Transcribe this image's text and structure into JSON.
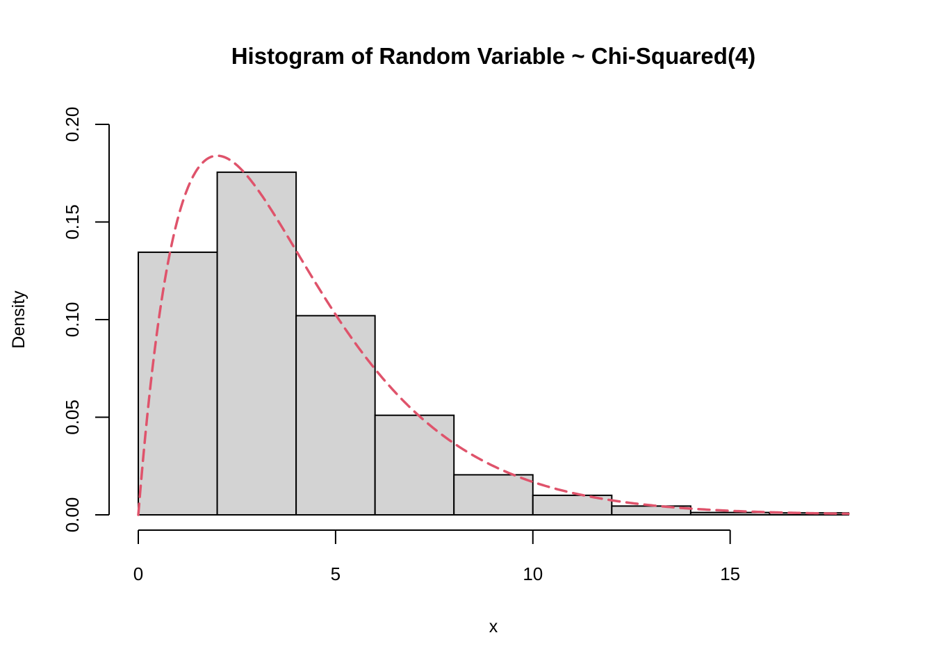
{
  "chart_data": {
    "type": "bar",
    "title": "Histogram of Random Variable ~ Chi-Squared(4)",
    "xlabel": "x",
    "ylabel": "Density",
    "xlim": [
      0,
      18
    ],
    "ylim": [
      0,
      0.2
    ],
    "x_ticks": [
      0,
      5,
      10,
      15
    ],
    "x_tick_labels": [
      "0",
      "5",
      "10",
      "15"
    ],
    "y_ticks": [
      0,
      0.05,
      0.1,
      0.15,
      0.2
    ],
    "y_tick_labels": [
      "0.00",
      "0.05",
      "0.10",
      "0.15",
      "0.20"
    ],
    "bins": [
      {
        "start": 0,
        "end": 2,
        "density": 0.1345
      },
      {
        "start": 2,
        "end": 4,
        "density": 0.1755
      },
      {
        "start": 4,
        "end": 6,
        "density": 0.102
      },
      {
        "start": 6,
        "end": 8,
        "density": 0.051
      },
      {
        "start": 8,
        "end": 10,
        "density": 0.0205
      },
      {
        "start": 10,
        "end": 12,
        "density": 0.01
      },
      {
        "start": 12,
        "end": 14,
        "density": 0.0045
      },
      {
        "start": 14,
        "end": 16,
        "density": 0.0012
      },
      {
        "start": 16,
        "end": 18,
        "density": 0.001
      }
    ],
    "density_curve": {
      "distribution": "chi-squared",
      "df": 4,
      "x_range": [
        0,
        18
      ],
      "line_style": "dashed",
      "color": "#DF536B"
    },
    "bar_fill": "#D3D3D3",
    "bar_stroke": "#000000",
    "grid": false,
    "legend": "none"
  }
}
